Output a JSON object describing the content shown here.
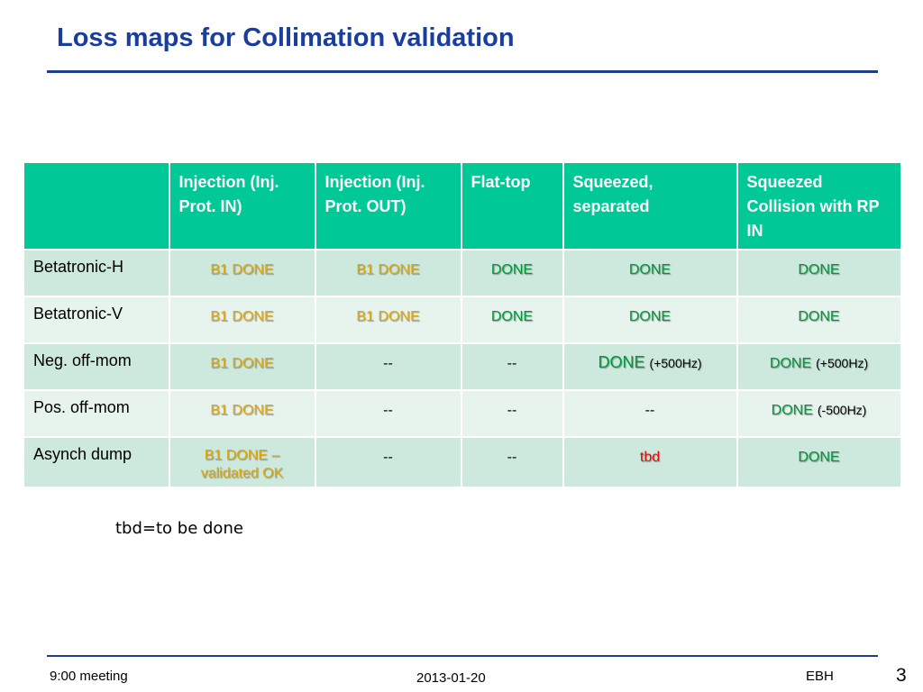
{
  "slide": {
    "title": "Loss maps for Collimation validation",
    "footnote": "tbd=to be done",
    "footer_left": "9:00 meeting",
    "footer_center": "2013-01-20",
    "footer_right": "EBH",
    "page_number": "3"
  },
  "colors": {
    "title": "#1a3e9c",
    "header_bg": "#00c896",
    "row_dark": "#cde9dd",
    "row_light": "#e7f4ee",
    "b1_done": "#e8a800",
    "done": "#009a3a",
    "tbd": "#e01010"
  },
  "table": {
    "columns": [
      "",
      "Injection (Inj. Prot. IN)",
      "Injection (Inj. Prot. OUT)",
      "Flat-top",
      "Squeezed, separated",
      "Squeezed Collision with RP IN"
    ],
    "rows": [
      {
        "label": "Betatronic-H",
        "cells": [
          {
            "text": "B1 DONE",
            "kind": "b1"
          },
          {
            "text": "B1 DONE",
            "kind": "b1"
          },
          {
            "text": "DONE",
            "kind": "done"
          },
          {
            "text": "DONE",
            "kind": "done"
          },
          {
            "text": "DONE",
            "kind": "done"
          }
        ]
      },
      {
        "label": "Betatronic-V",
        "cells": [
          {
            "text": "B1 DONE",
            "kind": "b1"
          },
          {
            "text": "B1 DONE",
            "kind": "b1"
          },
          {
            "text": "DONE",
            "kind": "done"
          },
          {
            "text": "DONE",
            "kind": "done"
          },
          {
            "text": "DONE",
            "kind": "done"
          }
        ]
      },
      {
        "label": "Neg. off-mom",
        "cells": [
          {
            "text": "B1 DONE",
            "kind": "b1"
          },
          {
            "text": "--",
            "kind": "dash"
          },
          {
            "text": "--",
            "kind": "dash"
          },
          {
            "text": "DONE",
            "kind": "done",
            "note": "(+500Hz)",
            "big": true
          },
          {
            "text": "DONE",
            "kind": "done",
            "note": "(+500Hz)"
          }
        ]
      },
      {
        "label": "Pos. off-mom",
        "cells": [
          {
            "text": "B1 DONE",
            "kind": "b1"
          },
          {
            "text": "--",
            "kind": "dash"
          },
          {
            "text": "--",
            "kind": "dash"
          },
          {
            "text": "--",
            "kind": "dash"
          },
          {
            "text": "DONE",
            "kind": "done",
            "note": "(-500Hz)"
          }
        ]
      },
      {
        "label": "Asynch dump",
        "cells": [
          {
            "text": "B1 DONE – validated OK",
            "kind": "b1"
          },
          {
            "text": "--",
            "kind": "dash"
          },
          {
            "text": "--",
            "kind": "dash"
          },
          {
            "text": "tbd",
            "kind": "tbd"
          },
          {
            "text": "DONE",
            "kind": "done"
          }
        ]
      }
    ]
  }
}
